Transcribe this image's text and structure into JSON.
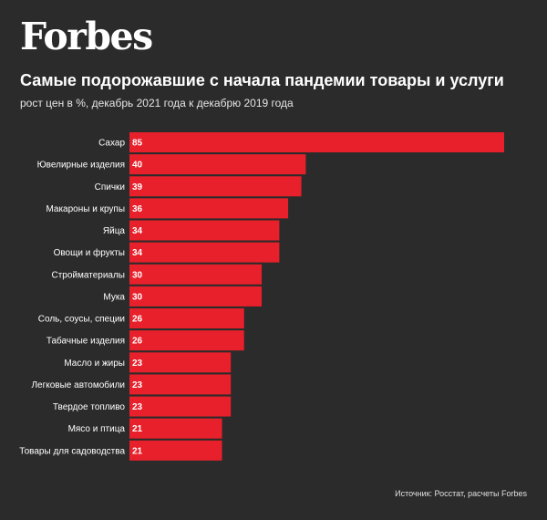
{
  "brand": {
    "logo_text": "Forbes"
  },
  "header": {
    "title": "Самые подорожавшие с начала пандемии товары и услуги",
    "subtitle": "рост цен в %, декабрь 2021 года к декабрю 2019 года"
  },
  "footer": {
    "source": "Источник: Росстат, расчеты Forbes"
  },
  "colors": {
    "background": "#2b2b2b",
    "bar": "#e8202b",
    "text": "#ffffff"
  },
  "chart_data": {
    "type": "bar",
    "orientation": "horizontal",
    "categories": [
      "Сахар",
      "Ювелирные изделия",
      "Спички",
      "Макароны и крупы",
      "Яйца",
      "Овощи и фрукты",
      "Стройматериалы",
      "Мука",
      "Соль, соусы, специи",
      "Табачные изделия",
      "Масло и жиры",
      "Легковые автомобили",
      "Твердое топливо",
      "Мясо и птица",
      "Товары для садоводства"
    ],
    "values": [
      85,
      40,
      39,
      36,
      34,
      34,
      30,
      30,
      26,
      26,
      23,
      23,
      23,
      21,
      21
    ],
    "data_labels": [
      "85",
      "40",
      "39",
      "36",
      "34",
      "34",
      "30",
      "30",
      "26",
      "26",
      "23",
      "23",
      "23",
      "21",
      "21"
    ],
    "xlim": [
      0,
      85
    ],
    "grid": false,
    "legend": "none"
  }
}
